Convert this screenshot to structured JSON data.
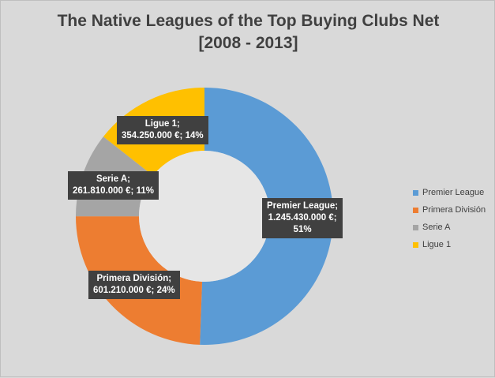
{
  "chart_data": {
    "type": "pie",
    "title": "The Native Leagues of the Top Buying Clubs Net",
    "subtitle": "[2008 - 2013]",
    "categories": [
      "Premier League",
      "Primera División",
      "Serie A",
      "Ligue 1"
    ],
    "values": [
      1245430000,
      601210000,
      261810000,
      354250000
    ],
    "value_labels": [
      "1.245.430.000 €",
      "601.210.000 €",
      "261.810.000 €",
      "354.250.000 €"
    ],
    "percent_labels": [
      "51%",
      "24%",
      "11%",
      "14%"
    ],
    "colors": [
      "#5b9bd5",
      "#ed7d31",
      "#a5a5a5",
      "#ffc000"
    ],
    "legend_placement": "right",
    "style": "doughnut"
  }
}
